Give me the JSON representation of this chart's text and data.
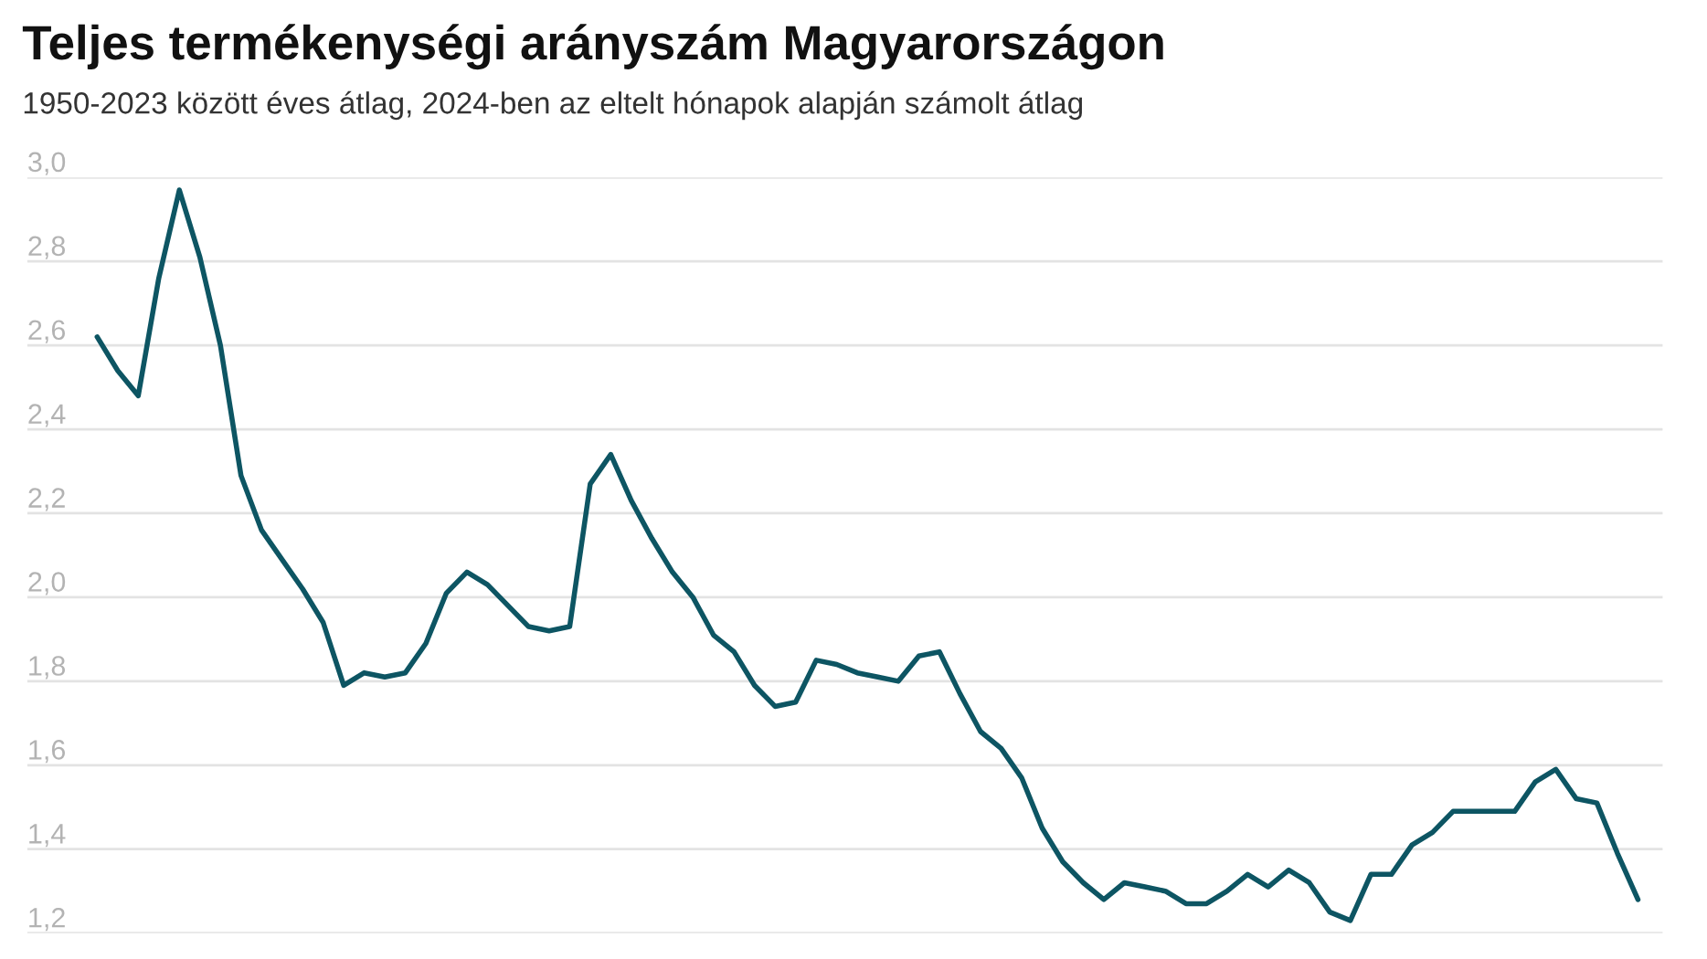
{
  "chart_data": {
    "type": "line",
    "title": "Teljes termékenységi arányszám Magyarországon",
    "subtitle": "1950-2023 között éves átlag, 2024-ben az eltelt hónapok alapján számolt átlag",
    "categories": [
      null,
      null,
      null,
      null,
      null,
      null,
      null,
      null,
      null,
      null,
      null,
      null,
      null,
      null,
      null,
      null,
      null,
      null,
      null,
      null,
      null,
      null,
      null,
      null,
      null,
      null,
      null,
      null,
      null,
      null,
      null,
      null,
      null,
      null,
      null,
      null,
      null,
      null,
      null,
      null,
      null,
      null,
      null,
      null,
      null,
      null,
      null,
      null,
      null,
      null,
      null,
      null,
      null,
      null,
      null,
      null,
      null,
      null,
      null,
      null,
      null,
      null,
      null,
      null,
      null,
      null,
      null,
      null,
      null,
      null,
      null,
      null,
      null,
      null,
      null,
      null
    ],
    "series": [
      {
        "color": "#0d5563",
        "values": [
          2.62,
          2.54,
          2.48,
          2.76,
          2.97,
          2.81,
          2.6,
          2.29,
          2.16,
          2.09,
          2.02,
          1.94,
          1.79,
          1.82,
          1.81,
          1.82,
          1.89,
          2.01,
          2.06,
          2.03,
          1.98,
          1.93,
          1.92,
          1.93,
          2.27,
          2.34,
          2.23,
          2.14,
          2.06,
          2.0,
          1.91,
          1.87,
          1.79,
          1.74,
          1.75,
          1.85,
          1.84,
          1.82,
          1.81,
          1.8,
          1.86,
          1.87,
          1.77,
          1.68,
          1.64,
          1.57,
          1.45,
          1.37,
          1.32,
          1.28,
          1.32,
          1.31,
          1.3,
          1.27,
          1.27,
          1.3,
          1.34,
          1.31,
          1.35,
          1.32,
          1.25,
          1.23,
          1.34,
          1.34,
          1.41,
          1.44,
          1.49,
          1.49,
          1.49,
          1.49,
          1.56,
          1.59,
          1.52,
          1.51,
          1.39,
          1.28
        ]
      }
    ],
    "ylim": [
      1.2,
      3.0
    ],
    "yticks": [
      {
        "value": 1.2,
        "label": "1,2"
      },
      {
        "value": 1.4,
        "label": "1,4"
      },
      {
        "value": 1.6,
        "label": "1,6"
      },
      {
        "value": 1.8,
        "label": "1,8"
      },
      {
        "value": 2.0,
        "label": "2,0"
      },
      {
        "value": 2.2,
        "label": "2,2"
      },
      {
        "value": 2.4,
        "label": "2,4"
      },
      {
        "value": 2.6,
        "label": "2,6"
      },
      {
        "value": 2.8,
        "label": "2,8"
      },
      {
        "value": 3.0,
        "label": "3,0"
      }
    ],
    "grid": "y",
    "tick_labels": "y",
    "marker": "none",
    "line_style": "solid"
  }
}
